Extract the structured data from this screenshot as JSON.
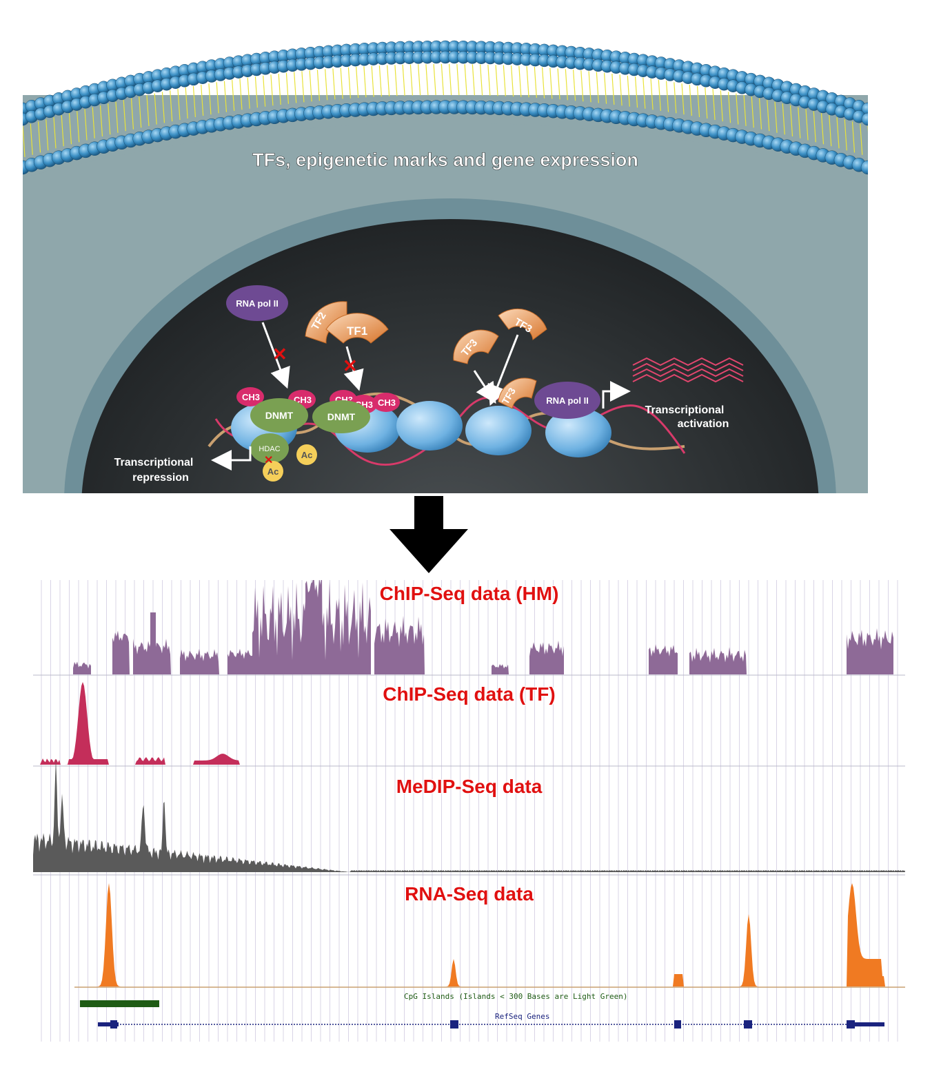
{
  "cell_panel": {
    "title": "TFs, epigenetic marks and gene expression",
    "molecules": {
      "rna_pol_1": "RNA pol II",
      "rna_pol_2": "RNA pol II",
      "tf1": "TF1",
      "tf2": "TF2",
      "tf3_a": "TF3",
      "tf3_b": "TF3",
      "tf3_c": "TF3",
      "dnmt_1": "DNMT",
      "dnmt_2": "DNMT",
      "hdac": "HDAC",
      "ac_1": "Ac",
      "ac_2": "Ac",
      "ch3": "CH3"
    },
    "labels": {
      "repression_line1": "Transcriptional",
      "repression_line2": "repression",
      "activation_line1": "Transcriptional",
      "activation_line2": "activation"
    }
  },
  "tracks": [
    {
      "id": "hm",
      "title": "ChIP-Seq data (HM)",
      "color": "#8e6a97"
    },
    {
      "id": "tf",
      "title": "ChIP-Seq data (TF)",
      "color": "#c42e5a"
    },
    {
      "id": "medip",
      "title": "MeDIP-Seq data",
      "color": "#5a5a5a"
    },
    {
      "id": "rna",
      "title": "RNA-Seq data",
      "color": "#f07a22"
    }
  ],
  "annotations": {
    "cpg_label": "CpG Islands (Islands < 300 Bases are Light Green)",
    "refseq_label": "RefSeq Genes",
    "cpg_color": "#1e5b14",
    "gene_color": "#1a237e"
  }
}
